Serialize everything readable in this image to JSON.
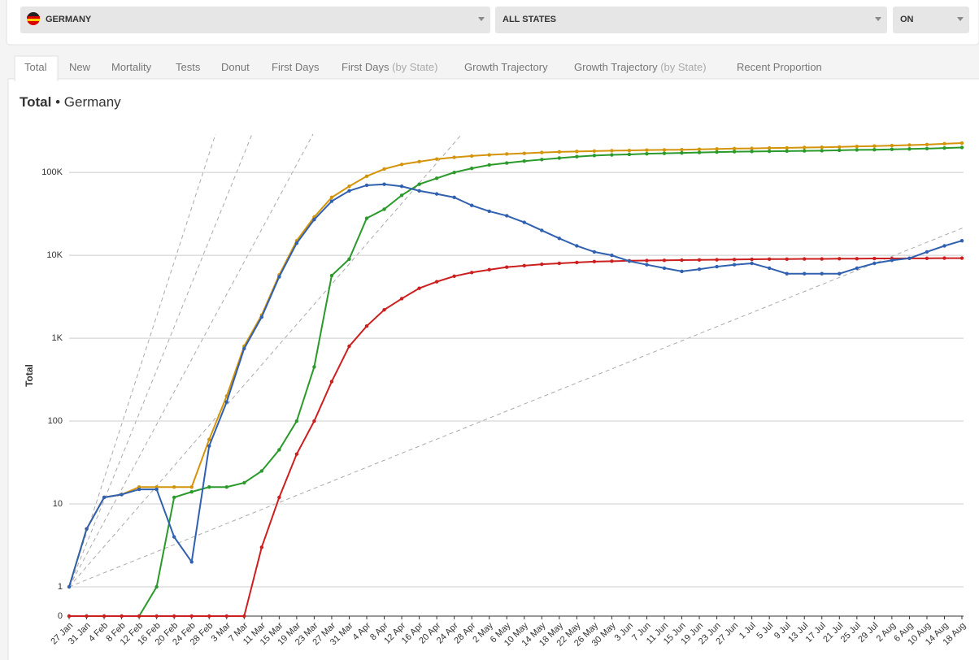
{
  "filters": {
    "country": "GERMANY",
    "state": "ALL STATES",
    "toggle": "ON"
  },
  "tabs": [
    {
      "label": "Total"
    },
    {
      "label": "New"
    },
    {
      "label": "Mortality"
    },
    {
      "label": "Tests"
    },
    {
      "label": "Donut"
    },
    {
      "label": "First Days"
    },
    {
      "label": "First Days",
      "qualifier": "(by State)"
    },
    {
      "label": "Growth Trajectory"
    },
    {
      "label": "Growth Trajectory",
      "qualifier": "(by State)"
    },
    {
      "label": "Recent Proportion"
    }
  ],
  "chart_data": {
    "type": "line",
    "title": "Total",
    "subtitle": "• Germany",
    "y_label": "Total",
    "log": true,
    "grid": true,
    "categories": [
      "27 Jan",
      "31 Jan",
      "4 Feb",
      "8 Feb",
      "12 Feb",
      "16 Feb",
      "20 Feb",
      "24 Feb",
      "28 Feb",
      "3 Mar",
      "7 Mar",
      "11 Mar",
      "15 Mar",
      "19 Mar",
      "23 Mar",
      "27 Mar",
      "31 Mar",
      "4 Apr",
      "8 Apr",
      "12 Apr",
      "16 Apr",
      "20 Apr",
      "24 Apr",
      "28 Apr",
      "2 May",
      "6 May",
      "10 May",
      "14 May",
      "18 May",
      "22 May",
      "26 May",
      "30 May",
      "3 Jun",
      "7 Jun",
      "11 Jun",
      "15 Jun",
      "19 Jun",
      "23 Jun",
      "27 Jun",
      "1 Jul",
      "5 Jul",
      "9 Jul",
      "13 Jul",
      "17 Jul",
      "21 Jul",
      "25 Jul",
      "29 Jul",
      "2 Aug",
      "6 Aug",
      "10 Aug",
      "14 Aug",
      "18 Aug"
    ],
    "ylim": [
      0,
      290000
    ],
    "yticks": [
      0,
      1,
      10,
      100,
      {
        "value": 1000,
        "label": "1K"
      },
      {
        "value": 10000,
        "label": "10K"
      },
      {
        "value": 100000,
        "label": "100K"
      }
    ],
    "series": [
      {
        "color": "#d4940a",
        "values": [
          1,
          5,
          12,
          13,
          16,
          16,
          16,
          16,
          60,
          200,
          800,
          1900,
          5800,
          15000,
          29000,
          50000,
          68000,
          90000,
          110000,
          125000,
          135000,
          145000,
          152000,
          158000,
          163000,
          167000,
          170000,
          174000,
          177000,
          179000,
          181000,
          183000,
          184000,
          186000,
          187000,
          188000,
          190000,
          192000,
          194000,
          195000,
          197000,
          198000,
          200000,
          201000,
          203000,
          206000,
          208000,
          211000,
          214000,
          217000,
          222000,
          226000
        ]
      },
      {
        "color": "#2a9a2a",
        "values": [
          0,
          0,
          0,
          0,
          0,
          1,
          12,
          14,
          16,
          16,
          18,
          25,
          45,
          100,
          450,
          5700,
          9000,
          28000,
          36000,
          53000,
          72000,
          85000,
          100000,
          112000,
          123000,
          130000,
          137000,
          143000,
          149000,
          155000,
          160000,
          163000,
          165000,
          168000,
          170000,
          172000,
          174000,
          176000,
          178000,
          179000,
          180000,
          181000,
          182000,
          183000,
          185000,
          187000,
          188000,
          190000,
          192000,
          194000,
          197000,
          200000
        ]
      },
      {
        "color": "#cc1f1f",
        "values": [
          0,
          0,
          0,
          0,
          0,
          0,
          0,
          0,
          0,
          0,
          0,
          3,
          12,
          40,
          100,
          300,
          800,
          1400,
          2200,
          3000,
          4000,
          4800,
          5600,
          6200,
          6700,
          7200,
          7500,
          7800,
          8000,
          8200,
          8400,
          8500,
          8600,
          8650,
          8700,
          8750,
          8800,
          8850,
          8900,
          8950,
          9000,
          9000,
          9050,
          9050,
          9100,
          9100,
          9150,
          9150,
          9200,
          9200,
          9250,
          9250
        ]
      },
      {
        "color": "#3060b0",
        "values": [
          1,
          5,
          12,
          13,
          15,
          15,
          4,
          2,
          50,
          170,
          750,
          1800,
          5500,
          14000,
          27000,
          45000,
          60000,
          70000,
          72000,
          68000,
          60000,
          55000,
          50000,
          40000,
          34000,
          30000,
          25000,
          20000,
          16000,
          13000,
          11000,
          10000,
          8500,
          7700,
          7000,
          6400,
          6800,
          7300,
          7700,
          8000,
          7000,
          6000,
          6000,
          6000,
          6000,
          7000,
          8000,
          8700,
          9200,
          11000,
          13000,
          15000
        ]
      }
    ]
  }
}
